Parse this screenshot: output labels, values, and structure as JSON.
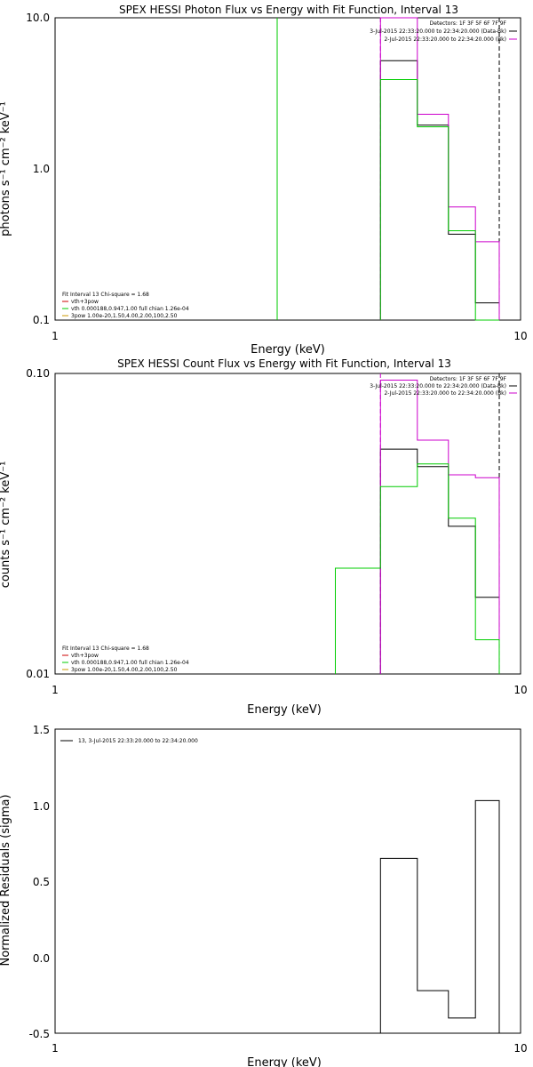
{
  "chart_data": [
    {
      "type": "line",
      "title": "SPEX HESSI Photon Flux vs Energy with Fit Function, Interval 13",
      "xlabel": "Energy (keV)",
      "ylabel": "photons s⁻¹ cm⁻² keV⁻¹",
      "xscale": "log",
      "yscale": "log",
      "xlim": [
        1,
        10
      ],
      "ylim": [
        0.1,
        10
      ],
      "x_tick_labels": [
        "1",
        "10"
      ],
      "y_tick_labels": [
        "0.1",
        "1.0",
        "10.0"
      ],
      "legend_top_right": [
        "Detectors: 1F 3F 5F 6F 7F 9F",
        "3-Jul-2015 22:33:20.000 to 22:34:20.000 (Data-Bk)",
        "2-Jul-2015 22:33:20.000 to 22:34:20.000 (Bk)"
      ],
      "legend_bottom_left": [
        "Fit Interval 13   Chi-square = 1.68",
        "vth+3pow",
        "vth 0.000188,0.947,1.00  full chian 1.26e-04",
        "3pow 1.00e-20,1.50,4.00,2.00,100,2.50"
      ],
      "vlines": [
        {
          "x": 3.0,
          "color": "#00cc00",
          "style": "solid"
        },
        {
          "x": 5.0,
          "color": "#cc00cc",
          "style": "dash"
        },
        {
          "x": 9.0,
          "color": "#000000",
          "style": "dash"
        }
      ],
      "series": [
        {
          "name": "Data-Bk",
          "color": "#000000",
          "bins": [
            [
              5,
              6,
              5.2
            ],
            [
              6,
              7,
              1.95
            ],
            [
              7,
              8,
              0.37
            ],
            [
              8,
              9,
              0.13
            ]
          ]
        },
        {
          "name": "Bk",
          "color": "#cc00cc",
          "bins": [
            [
              5,
              6,
              10.5
            ],
            [
              6,
              7,
              2.3
            ],
            [
              7,
              8,
              0.56
            ],
            [
              8,
              9,
              0.33
            ]
          ]
        },
        {
          "name": "vth",
          "color": "#00cc00",
          "bins": [
            [
              5,
              6,
              3.9
            ],
            [
              6,
              7,
              1.9
            ],
            [
              7,
              8,
              0.39
            ],
            [
              8,
              9,
              0.1
            ]
          ]
        }
      ]
    },
    {
      "type": "line",
      "title": "SPEX HESSI Count Flux vs Energy with Fit Function, Interval 13",
      "xlabel": "Energy (keV)",
      "ylabel": "counts s⁻¹ cm⁻² keV⁻¹",
      "xscale": "log",
      "yscale": "log",
      "xlim": [
        1,
        10
      ],
      "ylim": [
        0.01,
        0.1
      ],
      "x_tick_labels": [
        "1",
        "10"
      ],
      "y_tick_labels": [
        "0.01",
        "0.10"
      ],
      "legend_top_right": [
        "Detectors: 1F 3F 5F 6F 7F 9F",
        "3-Jul-2015 22:33:20.000 to 22:34:20.000 (Data-Bk)",
        "2-Jul-2015 22:33:20.000 to 22:34:20.000 (Bk)"
      ],
      "legend_bottom_left": [
        "Fit Interval 13   Chi-square = 1.68",
        "vth+3pow",
        "vth 0.000188,0.947,1.00  full chian 1.26e-04",
        "3pow 1.00e-20,1.50,4.00,2.00,100,2.50"
      ],
      "vlines": [
        {
          "x": 5.0,
          "color": "#cc00cc",
          "style": "dash"
        },
        {
          "x": 9.0,
          "color": "#000000",
          "style": "dash"
        }
      ],
      "series": [
        {
          "name": "Data-Bk",
          "color": "#000000",
          "bins": [
            [
              5,
              6,
              0.056
            ],
            [
              6,
              7,
              0.049
            ],
            [
              7,
              8,
              0.031
            ],
            [
              8,
              9,
              0.018
            ]
          ]
        },
        {
          "name": "Bk",
          "color": "#cc00cc",
          "bins": [
            [
              5,
              6,
              0.095
            ],
            [
              6,
              7,
              0.06
            ],
            [
              7,
              8,
              0.046
            ],
            [
              8,
              9,
              0.045
            ]
          ]
        },
        {
          "name": "vth",
          "color": "#00cc00",
          "bins": [
            [
              4,
              5,
              0.0225
            ],
            [
              5,
              6,
              0.042
            ],
            [
              6,
              7,
              0.05
            ],
            [
              7,
              8,
              0.033
            ],
            [
              8,
              9,
              0.013
            ]
          ]
        }
      ]
    },
    {
      "type": "line",
      "title": "",
      "xlabel": "Energy (keV)",
      "ylabel": "Normalized Residuals (sigma)",
      "xscale": "log",
      "yscale": "linear",
      "xlim": [
        1,
        10
      ],
      "ylim": [
        -0.5,
        1.5
      ],
      "x_tick_labels": [
        "1",
        "10"
      ],
      "y_tick_labels": [
        "-0.5",
        "0.0",
        "0.5",
        "1.0",
        "1.5"
      ],
      "legend_top_left": [
        "13,  3-Jul-2015 22:33:20.000 to 22:34:20.000"
      ],
      "series": [
        {
          "name": "13",
          "color": "#000000",
          "bins": [
            [
              5,
              6,
              0.65
            ],
            [
              6,
              7,
              -0.22
            ],
            [
              7,
              8,
              -0.4
            ],
            [
              8,
              9,
              1.03
            ]
          ]
        }
      ]
    }
  ]
}
